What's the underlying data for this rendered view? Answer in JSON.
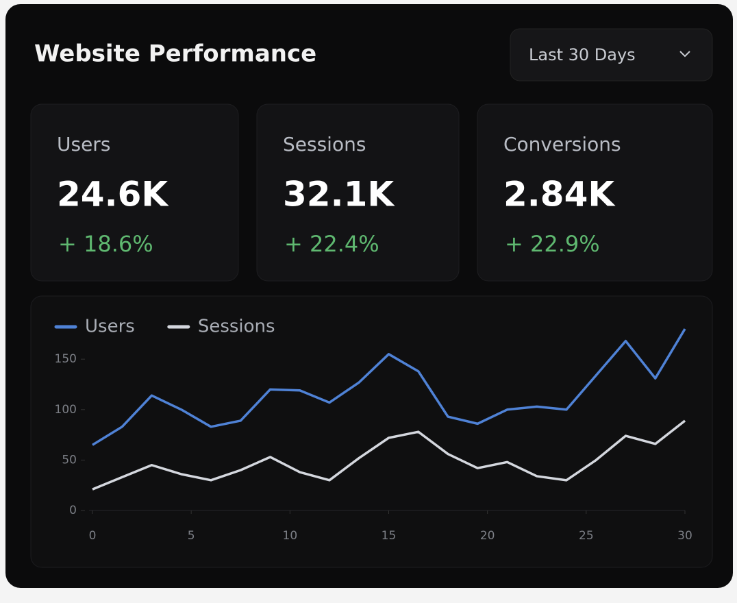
{
  "header": {
    "title": "Website Performance",
    "range": "Last 30 Days"
  },
  "kpis": [
    {
      "label": "Users",
      "value": "24.6K",
      "change": "+ 18.6%"
    },
    {
      "label": "Sessions",
      "value": "32.1K",
      "change": "+ 22.4%"
    },
    {
      "label": "Conversions",
      "value": "2.84K",
      "change": "+ 22.9%"
    }
  ],
  "chart_data": {
    "type": "line",
    "x": [
      0,
      1.5,
      3,
      4.5,
      6,
      7.5,
      9,
      10.5,
      12,
      13.5,
      15,
      16.5,
      18,
      19.5,
      21,
      22.5,
      24,
      25.5,
      27,
      28.5,
      30
    ],
    "series": [
      {
        "name": "Users",
        "color": "#4f82d6",
        "values": [
          65,
          83,
          114,
          100,
          83,
          89,
          120,
          119,
          107,
          127,
          155,
          138,
          93,
          86,
          100,
          103,
          100,
          134,
          168,
          131,
          180
        ]
      },
      {
        "name": "Sessions",
        "color": "#d4d7de",
        "values": [
          21,
          33,
          45,
          36,
          30,
          40,
          53,
          38,
          30,
          52,
          72,
          78,
          56,
          42,
          48,
          34,
          30,
          50,
          74,
          66,
          89
        ]
      }
    ],
    "xlim": [
      0,
      30
    ],
    "xticks": [
      0,
      5,
      10,
      15,
      20,
      25,
      30
    ],
    "ylim": [
      0,
      180
    ],
    "yticks": [
      0,
      50,
      100,
      150
    ],
    "grid": false
  }
}
